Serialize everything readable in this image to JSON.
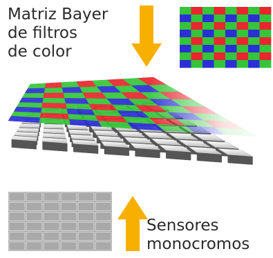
{
  "labels": {
    "filter_line1": "Matriz Bayer",
    "filter_line2": "de filtros",
    "filter_line3": "de color",
    "sensor_line1": "Sensores",
    "sensor_line2": "monocromos"
  },
  "colors": {
    "red": "#e8262e",
    "green": "#35c43a",
    "blue": "#2b2fd4",
    "arrow": "#f7b000",
    "sensor_grey": "#9c9c9c",
    "sensor_line": "#dcdcdc"
  },
  "bayer_pattern": {
    "rows": 8,
    "cols": 8,
    "even_row": [
      "green",
      "red"
    ],
    "odd_row": [
      "blue",
      "green"
    ]
  },
  "sensor_grid": {
    "rows": 6,
    "cols": 6
  },
  "icons": [
    "arrow-down-icon",
    "arrow-up-icon"
  ]
}
